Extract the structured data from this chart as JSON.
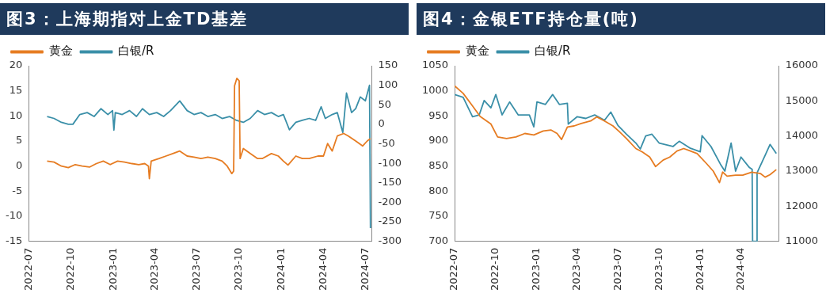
{
  "chart_data": [
    {
      "type": "line",
      "title": "图3：上海期指对上金TD基差",
      "legend": "top left",
      "xlim": [
        "2022-07-01",
        "2024-07-15"
      ],
      "xticks": [
        "2022-07",
        "2022-10",
        "2023-01",
        "2023-04",
        "2023-07",
        "2023-10",
        "2024-01",
        "2024-04",
        "2024-07"
      ],
      "ylim": [
        -15,
        20
      ],
      "yticks": [
        -15,
        -10,
        -5,
        0,
        5,
        10,
        15,
        20
      ],
      "y2lim": [
        -300,
        150
      ],
      "y2ticks": [
        -300,
        -250,
        -200,
        -150,
        -100,
        -50,
        0,
        50,
        100,
        150
      ],
      "series": [
        {
          "name": "黄金",
          "color": "#e67c22",
          "x": [
            "2022-08-10",
            "2022-08-25",
            "2022-09-10",
            "2022-09-25",
            "2022-10-10",
            "2022-10-25",
            "2022-11-10",
            "2022-11-25",
            "2022-12-10",
            "2022-12-25",
            "2023-01-10",
            "2023-01-25",
            "2023-02-10",
            "2023-02-25",
            "2023-03-10",
            "2023-03-18",
            "2023-03-20",
            "2023-03-24",
            "2023-04-10",
            "2023-04-25",
            "2023-05-10",
            "2023-05-25",
            "2023-06-10",
            "2023-06-25",
            "2023-07-10",
            "2023-07-25",
            "2023-08-10",
            "2023-08-25",
            "2023-09-05",
            "2023-09-15",
            "2023-09-19",
            "2023-09-21",
            "2023-09-26",
            "2023-10-01",
            "2023-10-03",
            "2023-10-10",
            "2023-10-25",
            "2023-11-10",
            "2023-11-20",
            "2023-12-10",
            "2023-12-25",
            "2024-01-05",
            "2024-01-15",
            "2024-02-01",
            "2024-02-15",
            "2024-03-01",
            "2024-03-20",
            "2024-04-01",
            "2024-04-10",
            "2024-04-20",
            "2024-05-01",
            "2024-05-15",
            "2024-05-25",
            "2024-06-10",
            "2024-06-25",
            "2024-07-05",
            "2024-07-12"
          ],
          "values": [
            1,
            0.8,
            0,
            -0.3,
            0.3,
            0,
            -0.2,
            0.5,
            1,
            0.3,
            1,
            0.8,
            0.5,
            0.3,
            0.5,
            0,
            -2.5,
            1,
            1.5,
            2,
            2.5,
            3,
            2,
            1.8,
            1.5,
            1.8,
            1.5,
            1,
            0,
            -1.5,
            -1,
            16,
            17.5,
            17,
            1.5,
            3.5,
            2.5,
            1.5,
            1.5,
            2.5,
            2,
            1,
            0.2,
            2,
            1.5,
            1.5,
            2,
            2,
            4.5,
            3,
            6,
            6.5,
            6,
            5,
            4,
            5,
            5.5
          ]
        },
        {
          "name": "白银/R",
          "color": "#3a8fa8",
          "axis": "y2",
          "x": [
            "2022-08-10",
            "2022-08-25",
            "2022-09-10",
            "2022-09-25",
            "2022-10-05",
            "2022-10-20",
            "2022-11-05",
            "2022-11-20",
            "2022-12-05",
            "2022-12-20",
            "2022-12-30",
            "2023-01-02",
            "2023-01-05",
            "2023-01-20",
            "2023-02-05",
            "2023-02-20",
            "2023-03-05",
            "2023-03-20",
            "2023-04-05",
            "2023-04-20",
            "2023-05-05",
            "2023-05-25",
            "2023-06-10",
            "2023-06-25",
            "2023-07-10",
            "2023-07-25",
            "2023-08-10",
            "2023-08-25",
            "2023-09-10",
            "2023-09-25",
            "2023-10-10",
            "2023-10-25",
            "2023-11-10",
            "2023-11-25",
            "2023-12-10",
            "2023-12-25",
            "2024-01-05",
            "2024-01-18",
            "2024-02-01",
            "2024-02-15",
            "2024-03-01",
            "2024-03-15",
            "2024-03-27",
            "2024-04-05",
            "2024-04-20",
            "2024-05-01",
            "2024-05-13",
            "2024-05-21",
            "2024-06-01",
            "2024-06-10",
            "2024-06-20",
            "2024-07-01",
            "2024-07-10",
            "2024-07-12"
          ],
          "values": [
            20,
            15,
            5,
            0,
            0,
            25,
            30,
            20,
            40,
            25,
            35,
            -15,
            30,
            25,
            35,
            20,
            40,
            25,
            30,
            20,
            35,
            60,
            35,
            25,
            30,
            20,
            25,
            15,
            20,
            10,
            5,
            15,
            35,
            25,
            30,
            20,
            25,
            -14,
            5,
            10,
            15,
            10,
            45,
            15,
            25,
            30,
            -21,
            80,
            30,
            40,
            70,
            60,
            100,
            -266
          ]
        }
      ]
    },
    {
      "type": "line",
      "title": "图4：金银ETF持仓量(吨)",
      "legend": "top left",
      "xlim": [
        "2022-07-01",
        "2024-06-25"
      ],
      "xticks": [
        "2022-07",
        "2022-10",
        "2023-01",
        "2023-04",
        "2023-07",
        "2023-10",
        "2024-01",
        "2024-04"
      ],
      "ylim": [
        700,
        1050
      ],
      "yticks": [
        700,
        750,
        800,
        850,
        900,
        950,
        1000,
        1050
      ],
      "y2lim": [
        11000,
        16000
      ],
      "y2ticks": [
        11000,
        12000,
        13000,
        14000,
        15000,
        16000
      ],
      "series": [
        {
          "name": "黄金",
          "color": "#e67c22",
          "x": [
            "2022-07-01",
            "2022-07-20",
            "2022-08-10",
            "2022-08-27",
            "2022-09-20",
            "2022-10-05",
            "2022-10-25",
            "2022-11-15",
            "2022-12-05",
            "2022-12-25",
            "2023-01-15",
            "2023-02-01",
            "2023-02-15",
            "2023-02-25",
            "2023-03-10",
            "2023-03-25",
            "2023-04-10",
            "2023-05-01",
            "2023-05-15",
            "2023-06-01",
            "2023-06-20",
            "2023-07-05",
            "2023-07-20",
            "2023-08-10",
            "2023-08-25",
            "2023-09-10",
            "2023-09-23",
            "2023-10-10",
            "2023-10-25",
            "2023-11-10",
            "2023-11-25",
            "2023-12-10",
            "2023-12-25",
            "2024-01-15",
            "2024-01-30",
            "2024-02-13",
            "2024-02-20",
            "2024-03-01",
            "2024-03-20",
            "2024-04-05",
            "2024-04-25",
            "2024-05-15",
            "2024-05-25",
            "2024-06-05",
            "2024-06-19"
          ],
          "values": [
            1010,
            995,
            970,
            949,
            934,
            908,
            905,
            908,
            915,
            912,
            920,
            922,
            915,
            903,
            928,
            930,
            935,
            940,
            948,
            940,
            930,
            918,
            905,
            885,
            878,
            868,
            849,
            862,
            868,
            880,
            885,
            880,
            875,
            855,
            840,
            817,
            838,
            830,
            832,
            832,
            838,
            835,
            828,
            833,
            843
          ]
        },
        {
          "name": "白银/R",
          "color": "#3a8fa8",
          "axis": "y2",
          "x": [
            "2022-07-01",
            "2022-07-20",
            "2022-08-10",
            "2022-08-25",
            "2022-09-05",
            "2022-09-20",
            "2022-10-01",
            "2022-10-15",
            "2022-11-01",
            "2022-11-20",
            "2022-12-15",
            "2022-12-25",
            "2023-01-01",
            "2023-01-20",
            "2023-02-05",
            "2023-02-20",
            "2023-03-10",
            "2023-03-12",
            "2023-04-01",
            "2023-04-20",
            "2023-05-10",
            "2023-06-01",
            "2023-06-15",
            "2023-07-01",
            "2023-07-20",
            "2023-08-10",
            "2023-08-20",
            "2023-09-01",
            "2023-09-15",
            "2023-10-01",
            "2023-11-01",
            "2023-11-15",
            "2023-12-10",
            "2024-01-01",
            "2024-01-05",
            "2024-01-25",
            "2024-02-15",
            "2024-02-25",
            "2024-03-10",
            "2024-03-20",
            "2024-04-01",
            "2024-04-20",
            "2024-04-26",
            "2024-04-27",
            "2024-05-06",
            "2024-05-07",
            "2024-05-25",
            "2024-06-05",
            "2024-06-19"
          ],
          "values": [
            15180,
            15100,
            14550,
            14600,
            15010,
            14800,
            15180,
            14600,
            14970,
            14600,
            14600,
            14260,
            14970,
            14900,
            15180,
            14900,
            14930,
            14340,
            14550,
            14500,
            14600,
            14450,
            14680,
            14300,
            14050,
            13800,
            13630,
            14000,
            14050,
            13800,
            13700,
            13850,
            13650,
            13550,
            14010,
            13700,
            13200,
            13000,
            13800,
            13000,
            13400,
            13100,
            13050,
            11000,
            11000,
            12950,
            13450,
            13760,
            13500
          ]
        }
      ]
    }
  ]
}
